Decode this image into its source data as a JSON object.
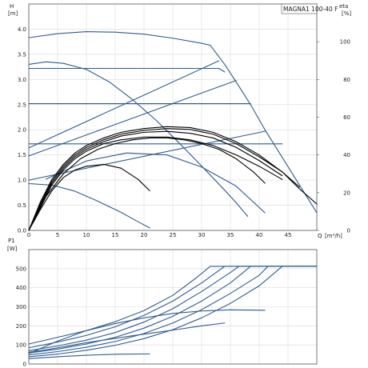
{
  "colors": {
    "blue": "#2e5b8e",
    "black": "#000000",
    "grid": "#d9d9d9"
  },
  "chart_data": [
    {
      "type": "line",
      "title": "MAGNA1 100-40 F",
      "ylabel": "H",
      "yunit": "[m]",
      "ylabel_right": "eta",
      "yunit_right": "[%]",
      "xlabel": "Q",
      "xunit": "[m³/h]",
      "xlim": [
        0,
        50
      ],
      "ylim": [
        0,
        4.5
      ],
      "ylim_right": [
        0,
        120
      ],
      "grid": true,
      "x_ticks": [
        "0",
        "5",
        "10",
        "15",
        "20",
        "25",
        "30",
        "35",
        "40",
        "45"
      ],
      "y_ticks": [
        "0.0",
        "0.5",
        "1.0",
        "1.5",
        "2.0",
        "2.5",
        "3.0",
        "3.5",
        "4.0"
      ],
      "y_right_ticks": [
        "0",
        "20",
        "40",
        "60",
        "80",
        "100"
      ],
      "head_curves": [
        {
          "color": "blue",
          "points": [
            [
              0,
              3.83
            ],
            [
              5,
              3.91
            ],
            [
              10,
              3.95
            ],
            [
              15,
              3.94
            ],
            [
              20,
              3.9
            ],
            [
              25,
              3.82
            ],
            [
              30,
              3.72
            ],
            [
              31.5,
              3.68
            ],
            [
              34,
              3.3
            ],
            [
              36,
              2.95
            ],
            [
              38.5,
              2.5
            ],
            [
              41,
              2.0
            ],
            [
              44,
              1.45
            ],
            [
              47,
              0.9
            ],
            [
              50,
              0.35
            ]
          ]
        },
        {
          "color": "blue",
          "points": [
            [
              0,
              3.3
            ],
            [
              3,
              3.35
            ],
            [
              6,
              3.32
            ],
            [
              10,
              3.2
            ],
            [
              14,
              2.95
            ],
            [
              18,
              2.6
            ],
            [
              22,
              2.2
            ],
            [
              26,
              1.75
            ],
            [
              30,
              1.28
            ],
            [
              34,
              0.8
            ],
            [
              36,
              0.55
            ],
            [
              38,
              0.28
            ]
          ]
        },
        {
          "color": "blue",
          "points": [
            [
              0,
              3.22
            ],
            [
              33,
              3.22
            ],
            [
              34,
              3.15
            ]
          ]
        },
        {
          "color": "blue",
          "points": [
            [
              0,
              2.52
            ],
            [
              38.5,
              2.52
            ]
          ]
        },
        {
          "color": "blue",
          "points": [
            [
              0,
              1.72
            ],
            [
              44,
              1.72
            ]
          ]
        },
        {
          "color": "blue",
          "points": [
            [
              0,
              0.93
            ],
            [
              4,
              0.9
            ],
            [
              8,
              0.78
            ],
            [
              12,
              0.58
            ],
            [
              16,
              0.36
            ],
            [
              19,
              0.17
            ],
            [
              21,
              0.05
            ]
          ]
        },
        {
          "color": "blue",
          "points": [
            [
              0,
              1.64
            ],
            [
              33,
              3.37
            ]
          ]
        },
        {
          "color": "blue",
          "points": [
            [
              0,
              1.48
            ],
            [
              36,
              2.98
            ]
          ]
        },
        {
          "color": "blue",
          "points": [
            [
              0,
              1.0
            ],
            [
              41,
              1.97
            ]
          ]
        },
        {
          "color": "blue",
          "points": [
            [
              3,
              1.02
            ],
            [
              10,
              1.38
            ],
            [
              17,
              1.54
            ],
            [
              24,
              1.5
            ],
            [
              30,
              1.26
            ],
            [
              36,
              0.88
            ],
            [
              41,
              0.35
            ]
          ]
        }
      ],
      "eta_curves": [
        {
          "color": "black",
          "points": [
            [
              0,
              0
            ],
            [
              2,
              15
            ],
            [
              4,
              27
            ],
            [
              6,
              35
            ],
            [
              8,
              41
            ],
            [
              10,
              45
            ],
            [
              13,
              49
            ],
            [
              16,
              52
            ],
            [
              20,
              54
            ],
            [
              24,
              55
            ],
            [
              28,
              54.5
            ],
            [
              32,
              52
            ],
            [
              36,
              47
            ],
            [
              40,
              40
            ],
            [
              44,
              31
            ],
            [
              47,
              22
            ],
            [
              50,
              14
            ]
          ]
        },
        {
          "color": "black",
          "points": [
            [
              0,
              0
            ],
            [
              2,
              14
            ],
            [
              4,
              26
            ],
            [
              6,
              34
            ],
            [
              8,
              40
            ],
            [
              10,
              44
            ],
            [
              13,
              48
            ],
            [
              16,
              51
            ],
            [
              20,
              53
            ],
            [
              24,
              54
            ],
            [
              28,
              53.5
            ],
            [
              32,
              51
            ],
            [
              36,
              46
            ],
            [
              40,
              39
            ],
            [
              44,
              31
            ],
            [
              47,
              23
            ]
          ]
        },
        {
          "color": "black",
          "points": [
            [
              0,
              0
            ],
            [
              2,
              13
            ],
            [
              4,
              25
            ],
            [
              6,
              33
            ],
            [
              8,
              39
            ],
            [
              10,
              43
            ],
            [
              13,
              47
            ],
            [
              16,
              50
            ],
            [
              20,
              52
            ],
            [
              24,
              52.5
            ],
            [
              28,
              51.5
            ],
            [
              32,
              49
            ],
            [
              36,
              44
            ],
            [
              40,
              37
            ],
            [
              44,
              29
            ]
          ]
        },
        {
          "color": "black",
          "points": [
            [
              0,
              0
            ],
            [
              2,
              12
            ],
            [
              4,
              24
            ],
            [
              6,
              32
            ],
            [
              8,
              38
            ],
            [
              10,
              42
            ],
            [
              13,
              46
            ],
            [
              16,
              48
            ],
            [
              20,
              49.5
            ],
            [
              24,
              49.5
            ],
            [
              28,
              48
            ],
            [
              32,
              45
            ],
            [
              36,
              40
            ],
            [
              40,
              34
            ],
            [
              44,
              27
            ]
          ]
        },
        {
          "color": "black",
          "points": [
            [
              0,
              0
            ],
            [
              2,
              11
            ],
            [
              4,
              21
            ],
            [
              6,
              28
            ],
            [
              8,
              32
            ],
            [
              10,
              34
            ],
            [
              13,
              35
            ],
            [
              16,
              33
            ],
            [
              19,
              27
            ],
            [
              21,
              21
            ]
          ]
        },
        {
          "color": "black",
          "points": [
            [
              0,
              0
            ],
            [
              3,
              18
            ],
            [
              6,
              30
            ],
            [
              9,
              38
            ],
            [
              12,
              43
            ],
            [
              15,
              46
            ],
            [
              18,
              48
            ],
            [
              21,
              49
            ],
            [
              24,
              49
            ],
            [
              27,
              48
            ],
            [
              30,
              46
            ],
            [
              33,
              43
            ],
            [
              36,
              38
            ],
            [
              39,
              31
            ],
            [
              41,
              25
            ]
          ]
        }
      ]
    },
    {
      "type": "line",
      "ylabel": "P1",
      "yunit": "[W]",
      "xlim": [
        0,
        50
      ],
      "ylim": [
        0,
        600
      ],
      "grid": true,
      "y_ticks": [
        "0",
        "100",
        "200",
        "300",
        "400",
        "500"
      ],
      "power_curves": [
        {
          "color": "blue",
          "points": [
            [
              0,
              105
            ],
            [
              5,
              140
            ],
            [
              10,
              175
            ],
            [
              15,
              222
            ],
            [
              20,
              280
            ],
            [
              25,
              360
            ],
            [
              29,
              450
            ],
            [
              31.5,
              512
            ],
            [
              50,
              512
            ]
          ]
        },
        {
          "color": "blue",
          "points": [
            [
              0,
              85
            ],
            [
              5,
              115
            ],
            [
              10,
              150
            ],
            [
              15,
              195
            ],
            [
              20,
              255
            ],
            [
              25,
              330
            ],
            [
              30,
              425
            ],
            [
              34,
              512
            ],
            [
              50,
              512
            ]
          ]
        },
        {
          "color": "blue",
          "points": [
            [
              0,
              70
            ],
            [
              5,
              95
            ],
            [
              10,
              125
            ],
            [
              15,
              165
            ],
            [
              20,
              220
            ],
            [
              25,
              290
            ],
            [
              30,
              380
            ],
            [
              35,
              480
            ],
            [
              36.5,
              512
            ],
            [
              50,
              512
            ]
          ]
        },
        {
          "color": "blue",
          "points": [
            [
              0,
              58
            ],
            [
              5,
              78
            ],
            [
              10,
              105
            ],
            [
              15,
              140
            ],
            [
              20,
              188
            ],
            [
              25,
              250
            ],
            [
              30,
              330
            ],
            [
              35,
              425
            ],
            [
              38.5,
              512
            ],
            [
              50,
              512
            ]
          ]
        },
        {
          "color": "blue",
          "points": [
            [
              0,
              48
            ],
            [
              5,
              65
            ],
            [
              10,
              88
            ],
            [
              15,
              118
            ],
            [
              20,
              160
            ],
            [
              25,
              215
            ],
            [
              30,
              285
            ],
            [
              35,
              370
            ],
            [
              40,
              465
            ],
            [
              41.5,
              512
            ],
            [
              50,
              512
            ]
          ]
        },
        {
          "color": "blue",
          "points": [
            [
              0,
              38
            ],
            [
              5,
              52
            ],
            [
              10,
              72
            ],
            [
              15,
              98
            ],
            [
              20,
              133
            ],
            [
              25,
              180
            ],
            [
              30,
              242
            ],
            [
              35,
              318
            ],
            [
              40,
              410
            ],
            [
              44,
              512
            ],
            [
              50,
              512
            ]
          ]
        },
        {
          "color": "blue",
          "points": [
            [
              0,
              55
            ],
            [
              5,
              120
            ],
            [
              10,
              175
            ],
            [
              15,
              212
            ],
            [
              20,
              242
            ],
            [
              25,
              265
            ],
            [
              30,
              278
            ],
            [
              35,
              284
            ],
            [
              41,
              282
            ]
          ]
        },
        {
          "color": "blue",
          "points": [
            [
              0,
              28
            ],
            [
              5,
              38
            ],
            [
              10,
              46
            ],
            [
              15,
              51
            ],
            [
              21,
              53
            ]
          ]
        },
        {
          "color": "blue",
          "points": [
            [
              0,
              62
            ],
            [
              3,
              75
            ],
            [
              6,
              90
            ],
            [
              10,
              112
            ],
            [
              14,
              130
            ],
            [
              18,
              148
            ],
            [
              22,
              165
            ],
            [
              26,
              182
            ],
            [
              30,
              200
            ],
            [
              34,
              215
            ]
          ]
        }
      ]
    }
  ]
}
